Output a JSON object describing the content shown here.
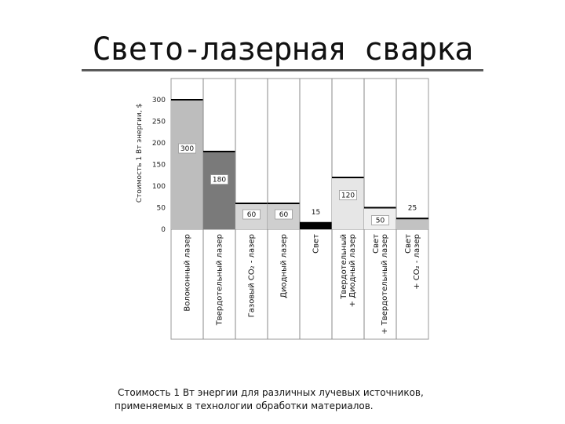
{
  "slide": {
    "title": "Свето-лазерная сварка",
    "caption_line1": "Стоимость 1 Вт энергии для различных лучевых источников,",
    "caption_line2": "применяемых в технологии обработки материалов."
  },
  "chart_data": {
    "type": "bar",
    "title": "",
    "ylabel": "Стоимость 1 Вт энергии, $",
    "xlabel": "",
    "ylim": [
      0,
      300
    ],
    "yticks": [
      0,
      50,
      100,
      150,
      200,
      250,
      300
    ],
    "grid": false,
    "legend": "none",
    "categories": [
      [
        "Волоконный лазер"
      ],
      [
        "Твердотельный лазер"
      ],
      [
        "Газовый CO₂ - лазер"
      ],
      [
        "Диодный лазер"
      ],
      [
        "Свет"
      ],
      [
        "Твердотельный",
        "+ Диодный лазер"
      ],
      [
        "Свет",
        "+ Твердотельный лазер"
      ],
      [
        "Свет",
        "+ CO₂ - лазер"
      ]
    ],
    "values": [
      300,
      180,
      60,
      60,
      15,
      120,
      50,
      25
    ],
    "value_labels": [
      "300",
      "180",
      "60",
      "60",
      "15",
      "120",
      "50",
      "25"
    ],
    "bar_colors": [
      "#bdbdbd",
      "#7a7a7a",
      "#d6d6d6",
      "#cfcfcf",
      "#000000",
      "#e6e6e6",
      "#eeeeee",
      "#c2c2c2"
    ]
  }
}
